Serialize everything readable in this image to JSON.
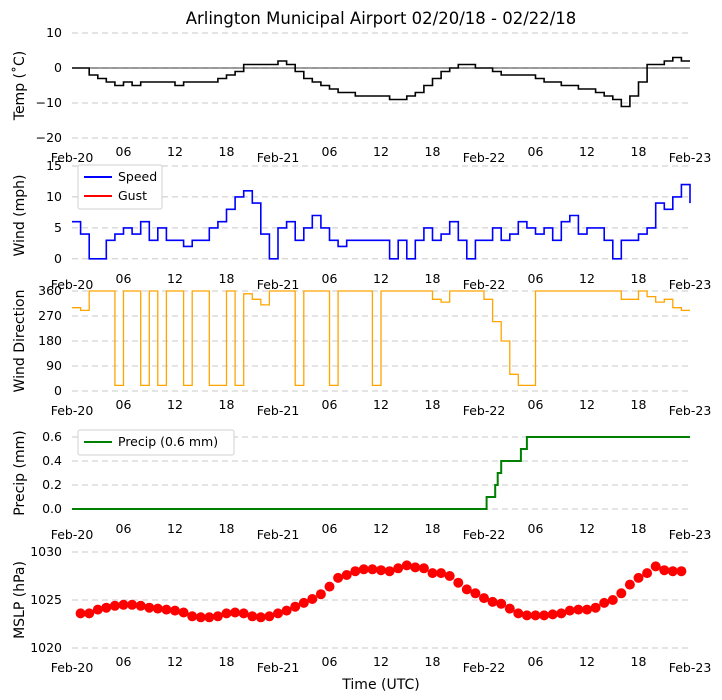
{
  "chart_data": {
    "type": "line",
    "title": "Arlington Municipal Airport 02/20/18 - 02/22/18",
    "xlabel": "Time (UTC)",
    "x_range_hours": [
      0,
      72
    ],
    "x_ticks": [
      "Feb-20",
      "06",
      "12",
      "18",
      "Feb-21",
      "06",
      "12",
      "18",
      "Feb-22",
      "06",
      "12",
      "18",
      "Feb-23"
    ],
    "colors": {
      "temp": "#000000",
      "speed": "#0000ff",
      "gust": "#ff0000",
      "dir": "#ffa500",
      "precip": "#008000",
      "mslp": "#ff0000",
      "grid": "#c8c8c8"
    },
    "panels": [
      {
        "name": "temp",
        "ylabel": "Temp ($^\\circ$C)",
        "ylabel_text": "Temp (˚C)",
        "ylim": [
          -20,
          10
        ],
        "yticks": [
          "10",
          "0",
          "−10",
          "−20"
        ],
        "ytick_values": [
          10,
          0,
          -10,
          -20
        ],
        "series": [
          {
            "name": "Temperature",
            "x": [
              0,
              1,
              2,
              3,
              4,
              5,
              6,
              7,
              8,
              9,
              10,
              11,
              12,
              13,
              14,
              15,
              16,
              17,
              18,
              19,
              20,
              21,
              22,
              23,
              24,
              25,
              26,
              27,
              28,
              29,
              30,
              31,
              32,
              33,
              34,
              35,
              36,
              37,
              38,
              39,
              40,
              41,
              42,
              43,
              44,
              45,
              46,
              47,
              48,
              49,
              50,
              51,
              52,
              53,
              54,
              55,
              56,
              57,
              58,
              59,
              60,
              61,
              62,
              63,
              64,
              65,
              66,
              67,
              68,
              69,
              70,
              71,
              72
            ],
            "values": [
              0,
              0,
              -2,
              -3,
              -4,
              -5,
              -4,
              -5,
              -4,
              -4,
              -4,
              -4,
              -5,
              -4,
              -4,
              -4,
              -4,
              -3,
              -2,
              -1,
              1,
              1,
              1,
              1,
              2,
              1,
              -1,
              -3,
              -4,
              -5,
              -6,
              -7,
              -7,
              -8,
              -8,
              -8,
              -8,
              -9,
              -9,
              -8,
              -7,
              -5,
              -3,
              -1,
              0,
              1,
              1,
              0,
              0,
              -1,
              -2,
              -2,
              -2,
              -2,
              -3,
              -4,
              -4,
              -5,
              -5,
              -6,
              -6,
              -7,
              -8,
              -9,
              -11,
              -8,
              -4,
              1,
              1,
              2,
              3,
              2,
              2
            ]
          }
        ]
      },
      {
        "name": "wind",
        "ylabel": "Wind (mph)",
        "ylim": [
          -1,
          15
        ],
        "yticks": [
          "15",
          "10",
          "5",
          "0"
        ],
        "ytick_values": [
          15,
          10,
          5,
          0
        ],
        "legend": {
          "placement": "top-left",
          "entries": [
            "Speed",
            "Gust"
          ]
        },
        "series": [
          {
            "name": "Speed",
            "x": [
              0,
              1,
              2,
              3,
              4,
              5,
              6,
              7,
              8,
              9,
              10,
              11,
              12,
              13,
              14,
              15,
              16,
              17,
              18,
              19,
              20,
              21,
              22,
              23,
              24,
              25,
              26,
              27,
              28,
              29,
              30,
              31,
              32,
              33,
              34,
              35,
              36,
              37,
              38,
              39,
              40,
              41,
              42,
              43,
              44,
              45,
              46,
              47,
              48,
              49,
              50,
              51,
              52,
              53,
              54,
              55,
              56,
              57,
              58,
              59,
              60,
              61,
              62,
              63,
              64,
              65,
              66,
              67,
              68,
              69,
              70,
              71,
              72
            ],
            "values": [
              6,
              4,
              0,
              0,
              3,
              4,
              5,
              4,
              6,
              3,
              5,
              3,
              3,
              2,
              3,
              3,
              5,
              6,
              8,
              10,
              11,
              9,
              4,
              0,
              5,
              6,
              3,
              5,
              7,
              5,
              3,
              2,
              3,
              3,
              3,
              3,
              3,
              0,
              3,
              0,
              3,
              5,
              3,
              4,
              6,
              3,
              0,
              3,
              3,
              5,
              3,
              4,
              6,
              5,
              4,
              5,
              3,
              6,
              7,
              4,
              5,
              5,
              3,
              0,
              3,
              3,
              4,
              5,
              9,
              8,
              10,
              12,
              9
            ]
          },
          {
            "name": "Gust",
            "x": [],
            "values": []
          }
        ]
      },
      {
        "name": "direction",
        "ylabel": "Wind Direction",
        "ylim": [
          0,
          360
        ],
        "yticks": [
          "360",
          "270",
          "180",
          "90",
          "0"
        ],
        "ytick_values": [
          360,
          270,
          180,
          90,
          0
        ],
        "series": [
          {
            "name": "Direction",
            "x": [
              0,
              1,
              2,
              3,
              4,
              5,
              6,
              7,
              8,
              9,
              10,
              11,
              12,
              13,
              14,
              15,
              16,
              17,
              18,
              19,
              20,
              21,
              22,
              23,
              24,
              25,
              26,
              27,
              28,
              29,
              30,
              31,
              32,
              33,
              34,
              35,
              36,
              37,
              38,
              39,
              40,
              41,
              42,
              43,
              44,
              45,
              46,
              47,
              48,
              49,
              50,
              51,
              52,
              53,
              54,
              55,
              56,
              57,
              58,
              59,
              60,
              61,
              62,
              63,
              64,
              65,
              66,
              67,
              68,
              69,
              70,
              71,
              72
            ],
            "values": [
              300,
              290,
              360,
              360,
              360,
              20,
              360,
              360,
              20,
              360,
              20,
              360,
              360,
              20,
              360,
              360,
              20,
              20,
              360,
              20,
              350,
              330,
              310,
              360,
              360,
              360,
              20,
              360,
              360,
              360,
              20,
              360,
              360,
              360,
              360,
              20,
              360,
              360,
              360,
              360,
              360,
              360,
              330,
              320,
              360,
              360,
              360,
              360,
              330,
              250,
              180,
              60,
              20,
              20,
              360,
              360,
              360,
              360,
              360,
              360,
              360,
              360,
              360,
              360,
              330,
              330,
              360,
              340,
              320,
              330,
              300,
              290,
              290
            ]
          }
        ]
      },
      {
        "name": "precip",
        "ylabel": "Precip (mm)",
        "ylim": [
          -0.05,
          0.65
        ],
        "yticks": [
          "0.6",
          "0.4",
          "0.2",
          "0.0"
        ],
        "ytick_values": [
          0.6,
          0.4,
          0.2,
          0.0
        ],
        "legend": {
          "placement": "top-left",
          "entries": [
            "Precip (0.6 mm)"
          ]
        },
        "series": [
          {
            "name": "Precip (0.6 mm)",
            "x": [
              0,
              48,
              48.3,
              49,
              49.3,
              49.6,
              50,
              51,
              52,
              52.3,
              53,
              60,
              72
            ],
            "values": [
              0,
              0,
              0.1,
              0.1,
              0.2,
              0.3,
              0.4,
              0.4,
              0.4,
              0.5,
              0.6,
              0.6,
              0.6
            ]
          }
        ]
      },
      {
        "name": "mslp",
        "ylabel": "MSLP (hPa)",
        "ylim": [
          1020,
          1030
        ],
        "yticks": [
          "1030",
          "1025",
          "1020"
        ],
        "ytick_values": [
          1030,
          1025,
          1020
        ],
        "series": [
          {
            "name": "MSLP",
            "x": [
              1,
              2,
              3,
              4,
              5,
              6,
              7,
              8,
              9,
              10,
              11,
              12,
              13,
              14,
              15,
              16,
              17,
              18,
              19,
              20,
              21,
              22,
              23,
              24,
              25,
              26,
              27,
              28,
              29,
              30,
              31,
              32,
              33,
              34,
              35,
              36,
              37,
              38,
              39,
              40,
              41,
              42,
              43,
              44,
              45,
              46,
              47,
              48,
              49,
              50,
              51,
              52,
              53,
              54,
              55,
              56,
              57,
              58,
              59,
              60,
              61,
              62,
              63,
              64,
              65,
              66,
              67,
              68,
              69,
              70,
              71
            ],
            "values": [
              1023.6,
              1023.6,
              1024.0,
              1024.2,
              1024.4,
              1024.5,
              1024.5,
              1024.4,
              1024.2,
              1024.1,
              1024.0,
              1023.9,
              1023.7,
              1023.3,
              1023.2,
              1023.2,
              1023.3,
              1023.6,
              1023.7,
              1023.6,
              1023.3,
              1023.2,
              1023.3,
              1023.6,
              1023.9,
              1024.3,
              1024.7,
              1025.1,
              1025.6,
              1026.4,
              1027.3,
              1027.6,
              1028.0,
              1028.2,
              1028.2,
              1028.1,
              1028.0,
              1028.3,
              1028.6,
              1028.4,
              1028.3,
              1027.8,
              1027.8,
              1027.5,
              1026.8,
              1026.1,
              1025.7,
              1025.2,
              1024.8,
              1024.6,
              1024.1,
              1023.6,
              1023.4,
              1023.4,
              1023.4,
              1023.5,
              1023.6,
              1023.9,
              1024.0,
              1024.0,
              1024.2,
              1024.7,
              1025.0,
              1025.7,
              1026.6,
              1027.3,
              1027.8,
              1028.5,
              1028.1,
              1028.0,
              1028.0
            ]
          }
        ]
      }
    ]
  }
}
